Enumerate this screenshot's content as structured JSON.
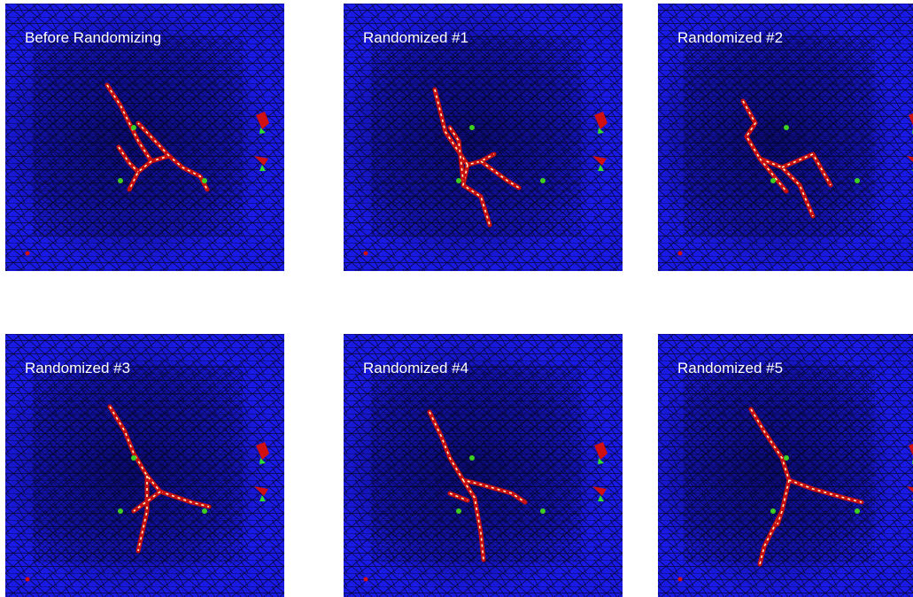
{
  "panels": [
    {
      "label": "Before Randomizing"
    },
    {
      "label": "Randomized #1"
    },
    {
      "label": "Randomized #2"
    },
    {
      "label": "Randomized #3"
    },
    {
      "label": "Randomized #4"
    },
    {
      "label": "Randomized #5"
    }
  ]
}
